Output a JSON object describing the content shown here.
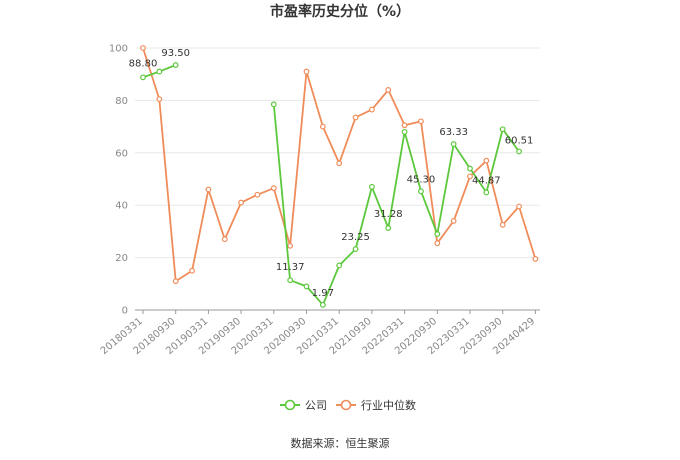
{
  "chart_data": {
    "type": "line",
    "title": "市盈率历史分位（%）",
    "source": "数据来源：恒生聚源",
    "ylim": [
      0,
      100
    ],
    "yticks": [
      0,
      20,
      40,
      60,
      80,
      100
    ],
    "grid": true,
    "legend_position": "bottom",
    "x": [
      "20180331",
      "20180630",
      "20180930",
      "20181231",
      "20190331",
      "20190630",
      "20190930",
      "20191231",
      "20200331",
      "20200630",
      "20200930",
      "20201231",
      "20210331",
      "20210630",
      "20210930",
      "20211231",
      "20220331",
      "20220630",
      "20220930",
      "20221231",
      "20230331",
      "20230630",
      "20230930",
      "20231231",
      "20240429"
    ],
    "xtick_labels": [
      "20180331",
      "20180930",
      "20190331",
      "20190930",
      "20200331",
      "20200930",
      "20210331",
      "20210930",
      "20220331",
      "20220930",
      "20230331",
      "20230930",
      "20240429"
    ],
    "xtick_index": [
      0,
      2,
      4,
      6,
      8,
      10,
      12,
      14,
      16,
      18,
      20,
      22,
      24
    ],
    "series": [
      {
        "name": "公司",
        "color": "#5cc83b",
        "values": [
          88.8,
          91.0,
          93.5,
          null,
          null,
          null,
          null,
          null,
          78.5,
          11.37,
          9.0,
          1.97,
          17.0,
          23.25,
          47.0,
          31.28,
          68.0,
          45.3,
          29.0,
          63.33,
          54.0,
          44.87,
          69.0,
          60.51,
          null
        ],
        "labels": {
          "0": "88.80",
          "2": "93.50",
          "9": "11.37",
          "11": "1.97",
          "13": "23.25",
          "15": "31.28",
          "17": "45.30",
          "19": "63.33",
          "21": "44.87",
          "23": "60.51"
        }
      },
      {
        "name": "行业中位数",
        "color": "#f08c5a",
        "values": [
          100.0,
          80.5,
          11.0,
          15.0,
          46.0,
          27.0,
          41.0,
          44.0,
          46.5,
          24.5,
          91.0,
          70.0,
          56.0,
          73.5,
          76.5,
          84.0,
          70.5,
          72.0,
          25.5,
          34.0,
          51.0,
          57.0,
          32.5,
          39.5,
          19.5
        ]
      }
    ]
  }
}
